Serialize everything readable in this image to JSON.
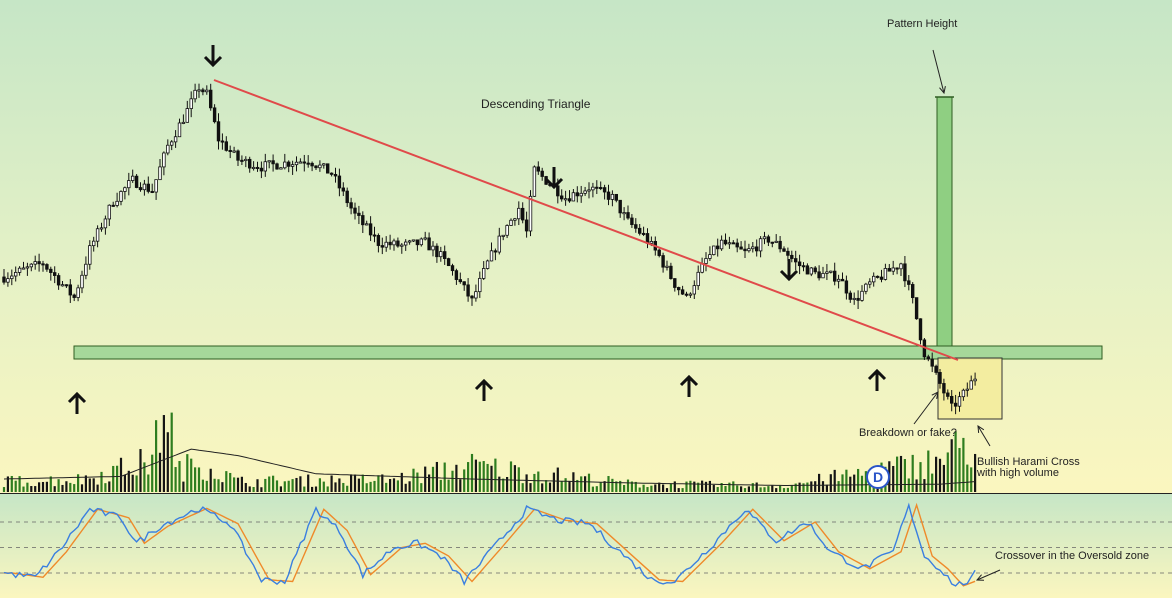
{
  "chart_data": {
    "type": "candlestick",
    "title": "",
    "xlabel": "",
    "ylabel": "",
    "grid": false,
    "legend": "none",
    "annotations": {
      "pattern_name": "Descending Triangle",
      "pattern_height": "Pattern Height",
      "breakdown": "Breakdown or fake?",
      "harami_line1": "Bullish Harami Cross",
      "harami_line2": "with high volume",
      "crossover": "Crossover in the Oversold zone",
      "dividend_marker": "D"
    },
    "price_keypoints": [
      [
        0,
        0.4
      ],
      [
        10,
        0.44
      ],
      [
        14,
        0.39
      ],
      [
        18,
        0.34
      ],
      [
        22,
        0.48
      ],
      [
        28,
        0.62
      ],
      [
        33,
        0.68
      ],
      [
        38,
        0.65
      ],
      [
        42,
        0.78
      ],
      [
        46,
        0.86
      ],
      [
        50,
        0.95
      ],
      [
        52,
        0.93
      ],
      [
        55,
        0.8
      ],
      [
        60,
        0.74
      ],
      [
        66,
        0.72
      ],
      [
        72,
        0.73
      ],
      [
        78,
        0.74
      ],
      [
        84,
        0.7
      ],
      [
        90,
        0.58
      ],
      [
        96,
        0.5
      ],
      [
        102,
        0.49
      ],
      [
        108,
        0.5
      ],
      [
        112,
        0.46
      ],
      [
        116,
        0.4
      ],
      [
        120,
        0.33
      ],
      [
        124,
        0.44
      ],
      [
        128,
        0.53
      ],
      [
        132,
        0.6
      ],
      [
        134,
        0.53
      ],
      [
        136,
        0.71
      ],
      [
        140,
        0.67
      ],
      [
        144,
        0.63
      ],
      [
        150,
        0.66
      ],
      [
        156,
        0.63
      ],
      [
        160,
        0.56
      ],
      [
        164,
        0.52
      ],
      [
        168,
        0.46
      ],
      [
        172,
        0.38
      ],
      [
        175,
        0.34
      ],
      [
        180,
        0.45
      ],
      [
        184,
        0.5
      ],
      [
        190,
        0.47
      ],
      [
        196,
        0.51
      ],
      [
        200,
        0.48
      ],
      [
        203,
        0.44
      ],
      [
        208,
        0.41
      ],
      [
        214,
        0.4
      ],
      [
        218,
        0.33
      ],
      [
        222,
        0.38
      ],
      [
        226,
        0.41
      ],
      [
        230,
        0.44
      ],
      [
        233,
        0.33
      ],
      [
        236,
        0.18
      ],
      [
        240,
        0.09
      ],
      [
        243,
        0.02
      ],
      [
        246,
        0.06
      ],
      [
        249,
        0.11
      ]
    ],
    "volume_keypoints": [
      [
        0,
        0.1
      ],
      [
        20,
        0.12
      ],
      [
        38,
        0.3
      ],
      [
        42,
        0.95
      ],
      [
        44,
        0.2
      ],
      [
        50,
        0.28
      ],
      [
        60,
        0.1
      ],
      [
        100,
        0.12
      ],
      [
        120,
        0.25
      ],
      [
        160,
        0.08
      ],
      [
        200,
        0.06
      ],
      [
        240,
        0.3
      ],
      [
        246,
        0.45
      ],
      [
        249,
        0.42
      ]
    ],
    "volume_ma_keypoints": [
      [
        0,
        0.1
      ],
      [
        30,
        0.12
      ],
      [
        48,
        0.33
      ],
      [
        60,
        0.28
      ],
      [
        80,
        0.14
      ],
      [
        120,
        0.1
      ],
      [
        160,
        0.07
      ],
      [
        200,
        0.05
      ],
      [
        240,
        0.06
      ],
      [
        249,
        0.08
      ]
    ],
    "stochastic_keypoints": [
      [
        0,
        20
      ],
      [
        8,
        15
      ],
      [
        14,
        45
      ],
      [
        22,
        95
      ],
      [
        30,
        85
      ],
      [
        34,
        55
      ],
      [
        40,
        75
      ],
      [
        50,
        96
      ],
      [
        58,
        78
      ],
      [
        66,
        12
      ],
      [
        72,
        10
      ],
      [
        80,
        95
      ],
      [
        86,
        70
      ],
      [
        92,
        18
      ],
      [
        100,
        50
      ],
      [
        106,
        55
      ],
      [
        112,
        40
      ],
      [
        118,
        10
      ],
      [
        126,
        52
      ],
      [
        134,
        95
      ],
      [
        142,
        82
      ],
      [
        150,
        78
      ],
      [
        158,
        45
      ],
      [
        166,
        12
      ],
      [
        172,
        10
      ],
      [
        182,
        55
      ],
      [
        190,
        95
      ],
      [
        198,
        58
      ],
      [
        206,
        80
      ],
      [
        212,
        45
      ],
      [
        220,
        25
      ],
      [
        228,
        45
      ],
      [
        232,
        100
      ],
      [
        236,
        40
      ],
      [
        240,
        25
      ],
      [
        244,
        5
      ],
      [
        248,
        12
      ],
      [
        249,
        20
      ]
    ],
    "stochastic_levels": [
      80,
      50,
      20
    ],
    "bar_count": 250,
    "colors": {
      "candle": "#111111",
      "volume_up": "#2e7d1f",
      "volume_down": "#151515",
      "volume_ma": "#222222",
      "trendline": "#e04a4a",
      "support_fill": "#a6d89a",
      "support_stroke": "#2f5e22",
      "height_bar": "#8fcf82",
      "harami_box": "#f3ec9c",
      "stoch_k": "#3a7fe0",
      "stoch_d": "#ef8a2a",
      "dividend": "#2a54c8"
    }
  }
}
